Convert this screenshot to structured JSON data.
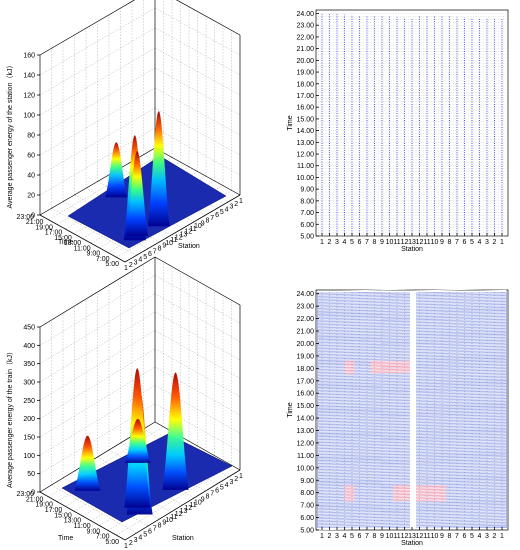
{
  "chart_data": [
    {
      "type": "surface3d",
      "zlabel": "Average passenger energy of the station（kJ）",
      "xlabel": "Station",
      "ylabel": "Time",
      "zlim": [
        0,
        160
      ],
      "z_ticks": [
        "0",
        "20",
        "40",
        "60",
        "80",
        "100",
        "120",
        "140",
        "160"
      ],
      "time_ticks": [
        "5:00",
        "7:00",
        "9:00",
        "11:00",
        "13:00",
        "15:00",
        "17:00",
        "19:00",
        "21:00",
        "23:00"
      ],
      "station_ticks": [
        "1",
        "2",
        "3",
        "4",
        "5",
        "6",
        "7",
        "8",
        "9",
        "10",
        "11",
        "12",
        "13",
        "12",
        "11",
        "10",
        "9",
        "8",
        "7",
        "6",
        "5",
        "4",
        "3",
        "2",
        "1"
      ],
      "peaks": [
        {
          "station": 6,
          "time": 8.0,
          "value": 105
        },
        {
          "station": 7,
          "time": 8.5,
          "value": 85
        },
        {
          "station": 11,
          "time": 8.0,
          "value": 115
        },
        {
          "station": 12,
          "time": 18.0,
          "value": 55
        }
      ]
    },
    {
      "type": "spacetime",
      "xlabel": "Station",
      "ylabel": "Time",
      "y_ticks": [
        "5.00",
        "6.00",
        "7.00",
        "8.00",
        "9.00",
        "10.00",
        "11.00",
        "12.00",
        "13.00",
        "14.00",
        "15.00",
        "16.00",
        "17.00",
        "18.00",
        "19.00",
        "20.00",
        "21.00",
        "22.00",
        "23.00",
        "24.00"
      ],
      "x_ticks": [
        "1",
        "2",
        "3",
        "4",
        "5",
        "6",
        "7",
        "8",
        "9",
        "10",
        "11",
        "12",
        "13",
        "12",
        "11",
        "10",
        "9",
        "8",
        "7",
        "6",
        "5",
        "4",
        "3",
        "2",
        "1"
      ],
      "ylim": [
        5,
        24.3
      ]
    },
    {
      "type": "surface3d",
      "zlabel": "Average passenger energy of the train（kJ）",
      "xlabel": "Station",
      "ylabel": "Time",
      "zlim": [
        0,
        450
      ],
      "z_ticks": [
        "0",
        "50",
        "100",
        "150",
        "200",
        "250",
        "300",
        "350",
        "400",
        "450"
      ],
      "time_ticks": [
        "5:00",
        "7:00",
        "9:00",
        "11:00",
        "13:00",
        "15:00",
        "17:00",
        "19:00",
        "21:00",
        "23:00"
      ],
      "station_ticks": [
        "1",
        "2",
        "3",
        "4",
        "5",
        "6",
        "7",
        "8",
        "9",
        "10",
        "11",
        "12",
        "13",
        "12",
        "11",
        "10",
        "9",
        "8",
        "7",
        "6",
        "5",
        "4",
        "3",
        "2",
        "1"
      ],
      "peaks": [
        {
          "station": 7,
          "time": 8.0,
          "value": 340
        },
        {
          "station": 8,
          "time": 9.5,
          "value": 380
        },
        {
          "station": 15,
          "time": 8.5,
          "value": 320
        },
        {
          "station": 6,
          "time": 18.0,
          "value": 150
        },
        {
          "station": 16,
          "time": 17.5,
          "value": 120
        }
      ]
    },
    {
      "type": "spacetime",
      "xlabel": "Station",
      "ylabel": "Time",
      "y_ticks": [
        "5.00",
        "6.00",
        "7.00",
        "8.00",
        "9.00",
        "10.00",
        "11.00",
        "12.00",
        "13.00",
        "14.00",
        "15.00",
        "16.00",
        "17.00",
        "18.00",
        "19.00",
        "20.00",
        "21.00",
        "22.00",
        "23.00",
        "24.00"
      ],
      "x_ticks": [
        "1",
        "2",
        "3",
        "4",
        "5",
        "6",
        "7",
        "8",
        "9",
        "10",
        "11",
        "12",
        "13",
        "12",
        "11",
        "10",
        "9",
        "8",
        "7",
        "6",
        "5",
        "4",
        "3",
        "2",
        "1"
      ],
      "ylim": [
        5,
        24.3
      ]
    }
  ]
}
